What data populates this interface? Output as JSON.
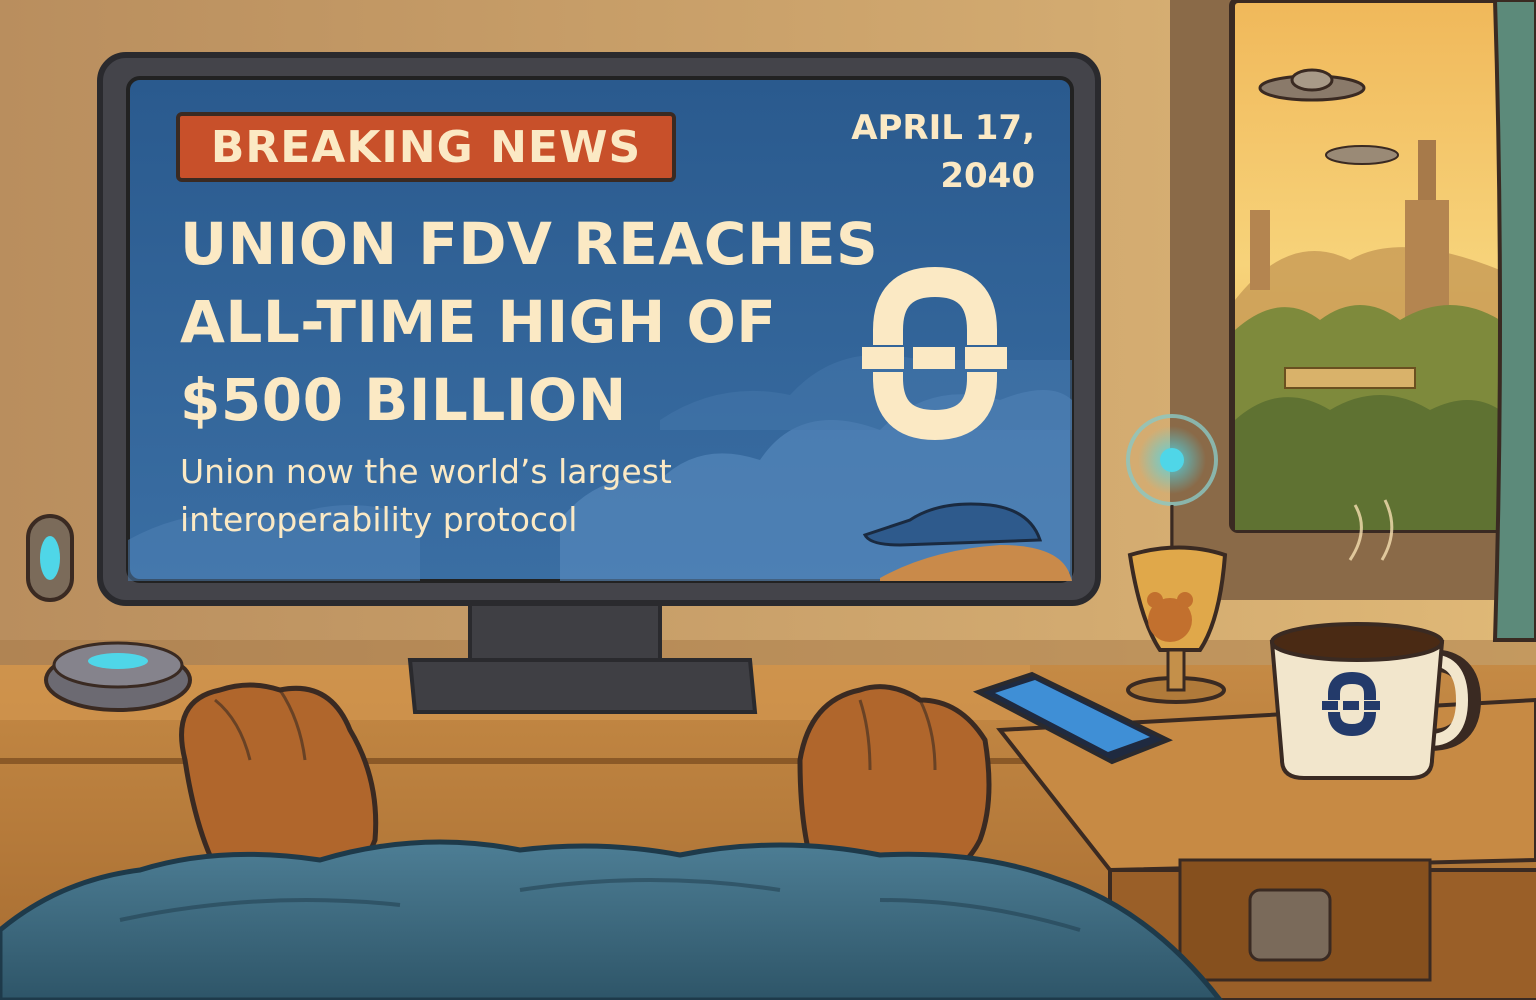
{
  "tv": {
    "badge": "BREAKING NEWS",
    "date_line1": "APRIL 17,",
    "date_line2": "2040",
    "headline_line1": "UNION FDV REACHES",
    "headline_line2": "ALL-TIME HIGH OF",
    "headline_line3": "$500 BILLION",
    "subhead_line1": "Union now the world’s largest",
    "subhead_line2": "interoperability protocol",
    "logo_icon": "union-logo-icon"
  },
  "colors": {
    "screen_blue": "#2f5f94",
    "badge_red": "#c8502a",
    "cream_text": "#fbe9c4",
    "wall": "#c9a06a",
    "blanket": "#3f6f86"
  }
}
